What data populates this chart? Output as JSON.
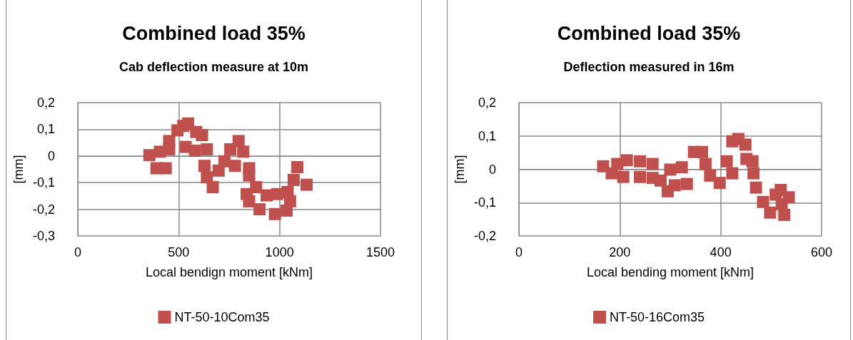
{
  "chart_data": [
    {
      "type": "scatter",
      "title": "Combined load 35%",
      "subtitle": "Cab deflection measure at 10m",
      "xlabel": "Local bendign moment [kNm]",
      "ylabel": "[mm]",
      "series": [
        {
          "name": "NT-50-10Com35",
          "color": "#c0504d",
          "x": [
            355,
            390,
            407,
            436,
            453,
            453,
            494,
            523,
            535,
            547,
            581,
            587,
            616,
            628,
            640,
            640,
            669,
            698,
            727,
            756,
            779,
            797,
            820,
            837,
            849,
            849,
            849,
            884,
            901,
            936,
            977,
            988,
            1035,
            1040,
            1052,
            1070,
            1088,
            1134
          ],
          "values": [
            0.003,
            -0.046,
            0.016,
            -0.046,
            0.025,
            0.056,
            0.096,
            0.113,
            0.034,
            0.122,
            0.02,
            0.09,
            0.078,
            -0.037,
            0.025,
            -0.08,
            -0.117,
            -0.055,
            -0.02,
            0.025,
            -0.037,
            0.056,
            0.016,
            -0.143,
            -0.046,
            -0.073,
            -0.17,
            -0.117,
            -0.2,
            -0.148,
            -0.218,
            -0.143,
            -0.205,
            -0.135,
            -0.17,
            -0.09,
            -0.042,
            -0.108
          ]
        }
      ],
      "xlim": [
        0,
        1500
      ],
      "xticks": [
        0,
        500,
        1000,
        1500
      ],
      "ylim": [
        -0.3,
        0.2
      ],
      "yticks": [
        {
          "value": -0.3,
          "label": "-0,3"
        },
        {
          "value": -0.2,
          "label": "-0,2"
        },
        {
          "value": -0.1,
          "label": "-0,1"
        },
        {
          "value": 0,
          "label": "0"
        },
        {
          "value": 0.1,
          "label": "0,1"
        },
        {
          "value": 0.2,
          "label": "0,2"
        }
      ],
      "grid": true,
      "legend": "bottom",
      "marker": "square"
    },
    {
      "type": "scatter",
      "title": "Combined load 35%",
      "subtitle": "Deflection measured in 16m",
      "xlabel": "Local bending moment [kNm]",
      "ylabel": "[mm]",
      "series": [
        {
          "name": "NT-50-16Com35",
          "color": "#c0504d",
          "x": [
            167,
            184,
            195,
            207,
            214,
            240,
            240,
            265,
            265,
            281,
            295,
            300,
            309,
            323,
            333,
            347,
            363,
            370,
            379,
            398,
            412,
            423,
            423,
            435,
            449,
            451,
            463,
            465,
            470,
            484,
            498,
            509,
            519,
            521,
            526,
            535
          ],
          "values": [
            0.009,
            -0.012,
            0.016,
            -0.023,
            0.027,
            0.024,
            -0.023,
            0.016,
            -0.026,
            -0.034,
            -0.066,
            -0.001,
            -0.048,
            0.006,
            -0.044,
            0.052,
            0.052,
            0.016,
            -0.019,
            -0.041,
            0.024,
            0.084,
            -0.012,
            0.091,
            0.074,
            0.031,
            0.024,
            -0.012,
            -0.055,
            -0.098,
            -0.13,
            -0.076,
            -0.062,
            -0.105,
            -0.137,
            -0.084
          ]
        }
      ],
      "xlim": [
        0,
        600
      ],
      "xticks": [
        0,
        200,
        400,
        600
      ],
      "ylim": [
        -0.2,
        0.2
      ],
      "yticks": [
        {
          "value": -0.2,
          "label": "-0,2"
        },
        {
          "value": -0.1,
          "label": "-0,1"
        },
        {
          "value": 0,
          "label": "0"
        },
        {
          "value": 0.1,
          "label": "0,1"
        },
        {
          "value": 0.2,
          "label": "0,2"
        }
      ],
      "grid": true,
      "legend": "bottom",
      "marker": "square"
    }
  ]
}
